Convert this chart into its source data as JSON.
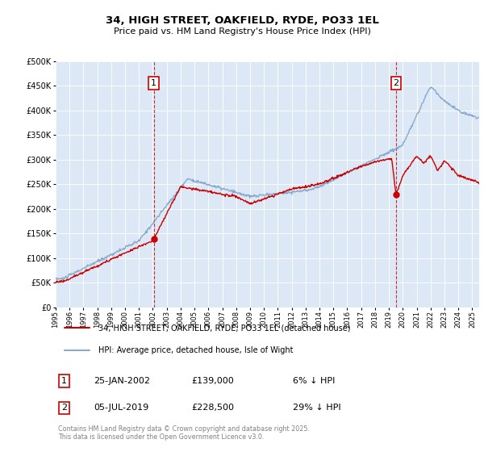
{
  "title": "34, HIGH STREET, OAKFIELD, RYDE, PO33 1EL",
  "subtitle": "Price paid vs. HM Land Registry's House Price Index (HPI)",
  "legend_line1": "34, HIGH STREET, OAKFIELD, RYDE, PO33 1EL (detached house)",
  "legend_line2": "HPI: Average price, detached house, Isle of Wight",
  "annotation1_date": "25-JAN-2002",
  "annotation1_price": "£139,000",
  "annotation1_hpi": "6% ↓ HPI",
  "annotation1_year": 2002.07,
  "annotation1_price_val": 139000,
  "annotation2_date": "05-JUL-2019",
  "annotation2_price": "£228,500",
  "annotation2_hpi": "29% ↓ HPI",
  "annotation2_year": 2019.51,
  "annotation2_price_val": 228500,
  "footnote": "Contains HM Land Registry data © Crown copyright and database right 2025.\nThis data is licensed under the Open Government Licence v3.0.",
  "red_color": "#cc0000",
  "blue_color": "#88aacc",
  "annotation_box_color": "#cc0000",
  "background_color": "#dce8f5",
  "ylim": [
    0,
    500000
  ],
  "xlim_start": 1995,
  "xlim_end": 2025.5
}
